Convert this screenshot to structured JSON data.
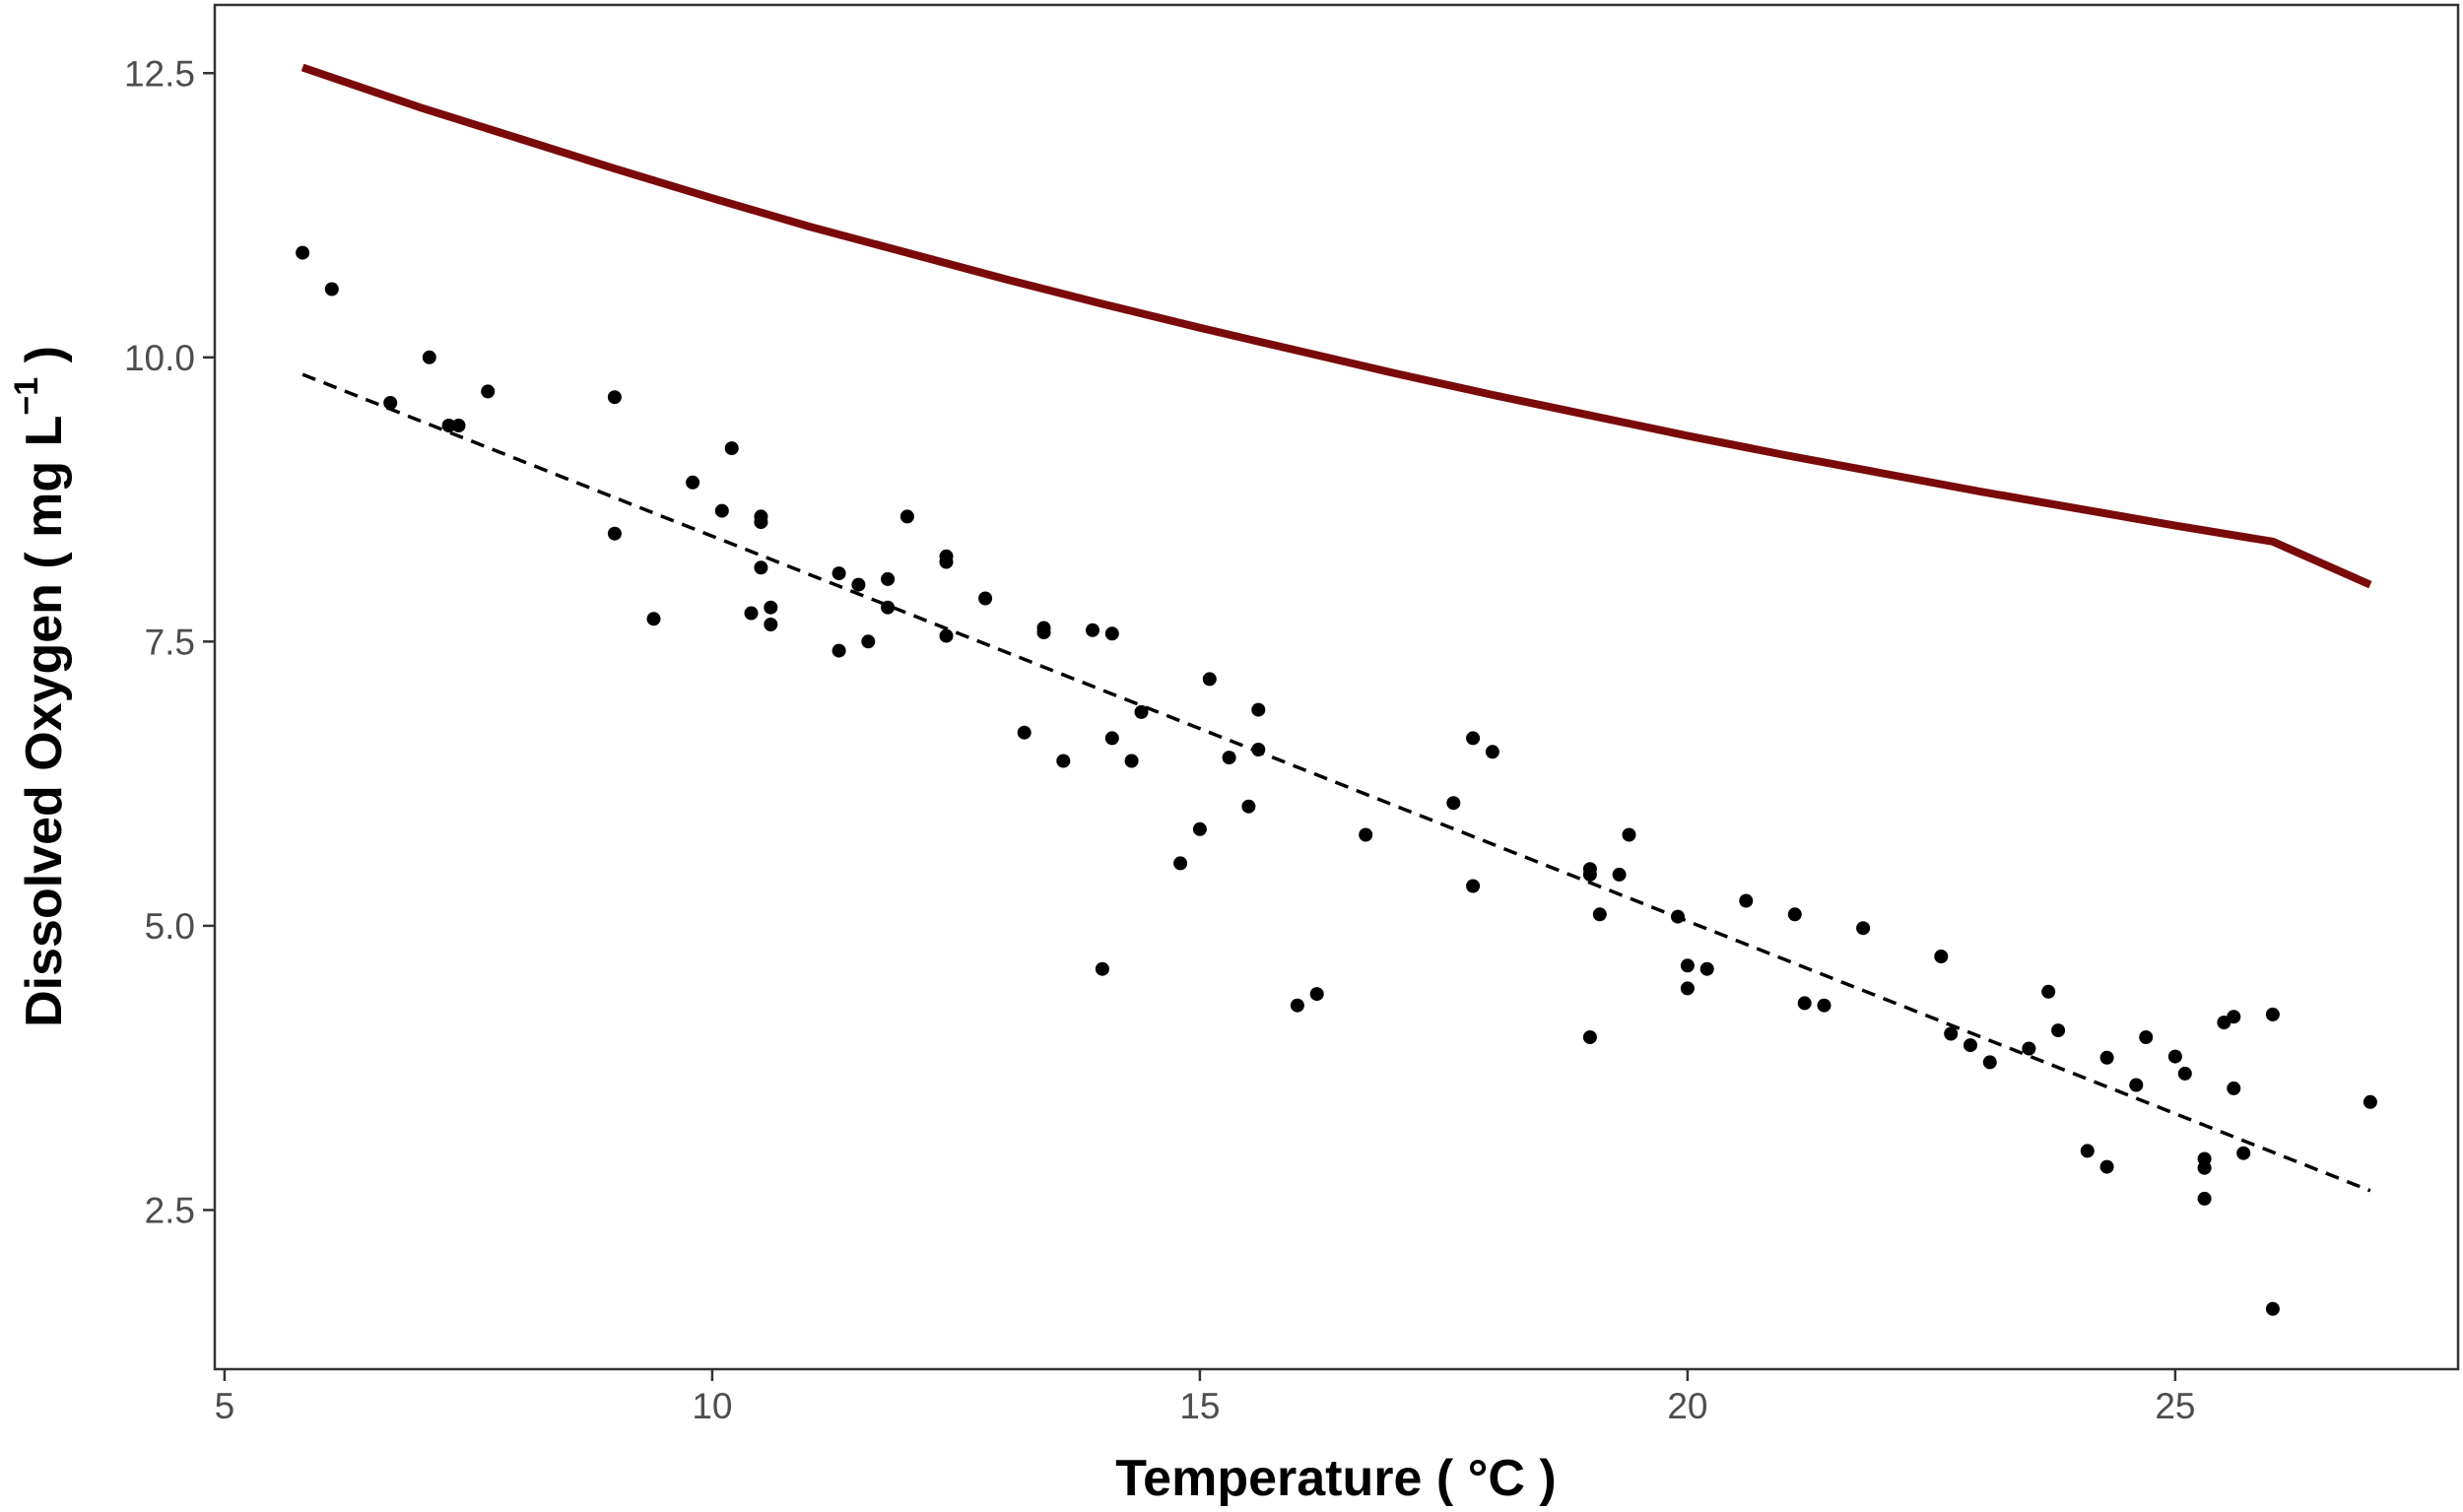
{
  "chart_data": {
    "type": "scatter",
    "xlabel": "Temperature ( °C )",
    "ylabel": {
      "main": "Dissolved Oxygen ( mg L",
      "superscript": "−1",
      "close": " )"
    },
    "xlim": [
      4.9,
      27.9
    ],
    "ylim": [
      1.1,
      13.1
    ],
    "x_ticks": [
      5,
      10,
      15,
      20,
      25
    ],
    "x_tick_labels": [
      "5",
      "10",
      "15",
      "20",
      "25"
    ],
    "y_ticks": [
      2.5,
      5.0,
      7.5,
      10.0,
      12.5
    ],
    "y_tick_labels": [
      "2.5",
      "5.0",
      "7.5",
      "10.0",
      "12.5"
    ],
    "grid": false,
    "legend": "none",
    "series": [
      {
        "kind": "points",
        "color": "#000000",
        "points": [
          [
            5.8,
            10.92
          ],
          [
            6.1,
            10.6
          ],
          [
            6.7,
            9.6
          ],
          [
            7.1,
            10.0
          ],
          [
            7.3,
            9.4
          ],
          [
            7.4,
            9.4
          ],
          [
            7.7,
            9.7
          ],
          [
            9.0,
            9.65
          ],
          [
            9.0,
            8.45
          ],
          [
            9.4,
            7.7
          ],
          [
            9.8,
            8.9
          ],
          [
            10.1,
            8.65
          ],
          [
            10.2,
            9.2
          ],
          [
            10.4,
            7.75
          ],
          [
            10.5,
            8.15
          ],
          [
            10.5,
            8.6
          ],
          [
            10.5,
            8.55
          ],
          [
            10.6,
            7.65
          ],
          [
            10.6,
            7.8
          ],
          [
            11.3,
            7.42
          ],
          [
            11.3,
            8.1
          ],
          [
            11.5,
            8.0
          ],
          [
            11.6,
            7.5
          ],
          [
            11.8,
            7.8
          ],
          [
            11.8,
            8.05
          ],
          [
            12.0,
            8.6
          ],
          [
            12.4,
            8.2
          ],
          [
            12.4,
            8.25
          ],
          [
            12.4,
            7.55
          ],
          [
            12.8,
            7.88
          ],
          [
            13.2,
            6.7
          ],
          [
            13.4,
            7.62
          ],
          [
            13.4,
            7.58
          ],
          [
            13.6,
            6.45
          ],
          [
            13.9,
            7.6
          ],
          [
            14.0,
            4.62
          ],
          [
            14.1,
            6.65
          ],
          [
            14.1,
            7.57
          ],
          [
            14.3,
            6.45
          ],
          [
            14.4,
            6.88
          ],
          [
            14.8,
            5.55
          ],
          [
            15.0,
            5.85
          ],
          [
            15.1,
            7.17
          ],
          [
            15.3,
            6.48
          ],
          [
            15.5,
            6.05
          ],
          [
            15.6,
            6.9
          ],
          [
            15.6,
            6.55
          ],
          [
            16.0,
            4.3
          ],
          [
            16.2,
            4.4
          ],
          [
            16.7,
            5.8
          ],
          [
            17.6,
            6.08
          ],
          [
            17.8,
            6.65
          ],
          [
            17.8,
            5.35
          ],
          [
            18.0,
            6.53
          ],
          [
            19.0,
            5.45
          ],
          [
            19.0,
            5.5
          ],
          [
            19.0,
            4.02
          ],
          [
            19.1,
            5.1
          ],
          [
            19.3,
            5.45
          ],
          [
            19.4,
            5.8
          ],
          [
            19.9,
            5.08
          ],
          [
            20.0,
            4.65
          ],
          [
            20.0,
            4.45
          ],
          [
            20.2,
            4.62
          ],
          [
            20.6,
            5.22
          ],
          [
            21.1,
            5.1
          ],
          [
            21.2,
            4.32
          ],
          [
            21.4,
            4.3
          ],
          [
            21.8,
            4.98
          ],
          [
            22.6,
            4.73
          ],
          [
            22.7,
            4.05
          ],
          [
            22.9,
            3.95
          ],
          [
            23.1,
            3.8
          ],
          [
            23.5,
            3.92
          ],
          [
            23.7,
            4.42
          ],
          [
            23.8,
            4.08
          ],
          [
            24.1,
            3.02
          ],
          [
            24.3,
            3.84
          ],
          [
            24.3,
            2.88
          ],
          [
            24.6,
            3.6
          ],
          [
            24.7,
            4.02
          ],
          [
            25.0,
            3.85
          ],
          [
            25.1,
            3.7
          ],
          [
            25.3,
            2.95
          ],
          [
            25.3,
            2.87
          ],
          [
            25.3,
            2.6
          ],
          [
            25.5,
            4.15
          ],
          [
            25.6,
            4.2
          ],
          [
            25.6,
            3.57
          ],
          [
            25.7,
            3.0
          ],
          [
            26.0,
            4.22
          ],
          [
            26.0,
            1.63
          ],
          [
            27.0,
            3.45
          ]
        ]
      },
      {
        "kind": "dashed-line",
        "color": "#000000",
        "points": [
          [
            5.8,
            9.85
          ],
          [
            27.0,
            2.67
          ]
        ]
      },
      {
        "kind": "curve",
        "color": "#7a0a0a",
        "points": [
          [
            5.8,
            12.55
          ],
          [
            7,
            12.2
          ],
          [
            8,
            11.93
          ],
          [
            9,
            11.66
          ],
          [
            10,
            11.4
          ],
          [
            11,
            11.15
          ],
          [
            12,
            10.92
          ],
          [
            13,
            10.69
          ],
          [
            14,
            10.47
          ],
          [
            15,
            10.26
          ],
          [
            16,
            10.06
          ],
          [
            17,
            9.86
          ],
          [
            18,
            9.67
          ],
          [
            19,
            9.49
          ],
          [
            20,
            9.31
          ],
          [
            21,
            9.14
          ],
          [
            22,
            8.98
          ],
          [
            23,
            8.82
          ],
          [
            24,
            8.67
          ],
          [
            25,
            8.52
          ],
          [
            26,
            8.38
          ],
          [
            27,
            8.0
          ]
        ]
      }
    ]
  }
}
